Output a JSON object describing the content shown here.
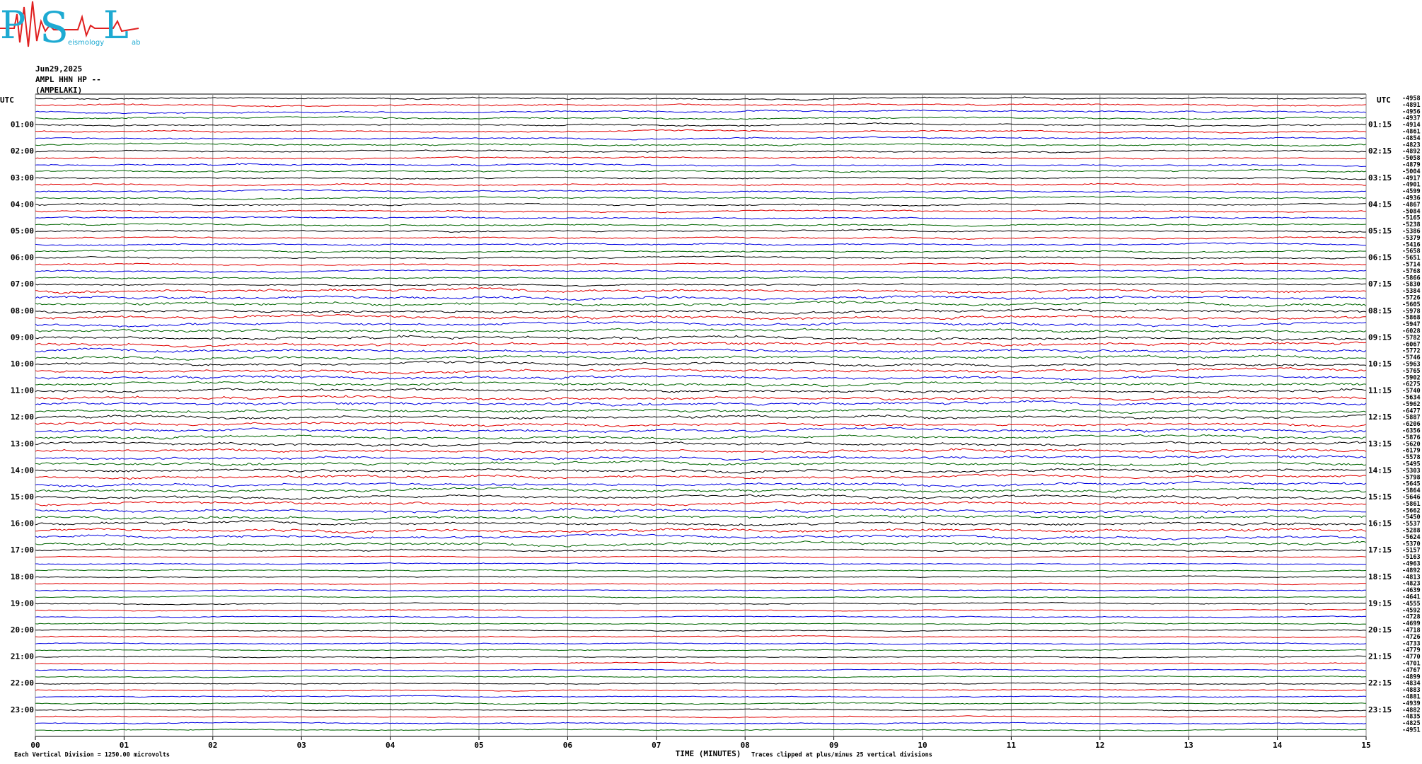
{
  "logo": {
    "letters": [
      "P",
      "S",
      "L"
    ],
    "small": [
      "eismology",
      "ab"
    ]
  },
  "header": {
    "date": "Jun29,2025",
    "station": "AMPL HHN HP --",
    "name": "(AMPELAKI)"
  },
  "axis": {
    "left_label": "UTC",
    "right_label": "UTC",
    "left_hours": [
      "01:00",
      "02:00",
      "03:00",
      "04:00",
      "05:00",
      "06:00",
      "07:00",
      "08:00",
      "09:00",
      "10:00",
      "11:00",
      "12:00",
      "13:00",
      "14:00",
      "15:00",
      "16:00",
      "17:00",
      "18:00",
      "19:00",
      "20:00",
      "21:00",
      "22:00",
      "23:00"
    ],
    "right_hours": [
      "01:15",
      "02:15",
      "03:15",
      "04:15",
      "05:15",
      "06:15",
      "07:15",
      "08:15",
      "09:15",
      "10:15",
      "11:15",
      "12:15",
      "13:15",
      "14:15",
      "15:15",
      "16:15",
      "17:15",
      "18:15",
      "19:15",
      "20:15",
      "21:15",
      "22:15",
      "23:15"
    ],
    "x_ticks": [
      "00",
      "01",
      "02",
      "03",
      "04",
      "05",
      "06",
      "07",
      "08",
      "09",
      "10",
      "11",
      "12",
      "13",
      "14",
      "15"
    ],
    "x_label": "TIME (MINUTES)",
    "clip_note": "Traces clipped at plus/minus 25 vertical divisions",
    "scale_note": "Each Vertical Division = 1250.00 microvolts"
  },
  "trace_colors": [
    "#000000",
    "#e00000",
    "#0000e0",
    "#006400"
  ],
  "trace_offsets": [
    -4958,
    -4891,
    -4956,
    -4937,
    -4914,
    -4861,
    -4854,
    -4823,
    -4892,
    -5058,
    -4879,
    -5004,
    -4917,
    -4901,
    -4599,
    -4936,
    -4867,
    -5084,
    -5165,
    -5238,
    -5386,
    -5379,
    -5416,
    -5658,
    -5651,
    -5714,
    -5768,
    -5866,
    -5830,
    -5384,
    -5726,
    -5605,
    -5978,
    -5868,
    -5947,
    -6028,
    -5782,
    -6067,
    -5772,
    -5746,
    -5963,
    -5765,
    -5902,
    -6275,
    -5740,
    -5634,
    -5962,
    -6477,
    -5887,
    -6206,
    -6356,
    -5876,
    -5620,
    -6179,
    -5578,
    -5495,
    -5303,
    -5798,
    -5645,
    -5864,
    -5646,
    -5861,
    -5662,
    -5450,
    -5537,
    -5288,
    -5624,
    -5370,
    -5157,
    -5163,
    -4963,
    -4892,
    -4813,
    -4823,
    -4639,
    -4641,
    -4555,
    -4592,
    -4728,
    -4699,
    -4718,
    -4726,
    -4733,
    -4779,
    -4770,
    -4701,
    -4767,
    -4899,
    -4834,
    -4883,
    -4881,
    -4939,
    -4882,
    -4835,
    -4825,
    -4951
  ]
}
